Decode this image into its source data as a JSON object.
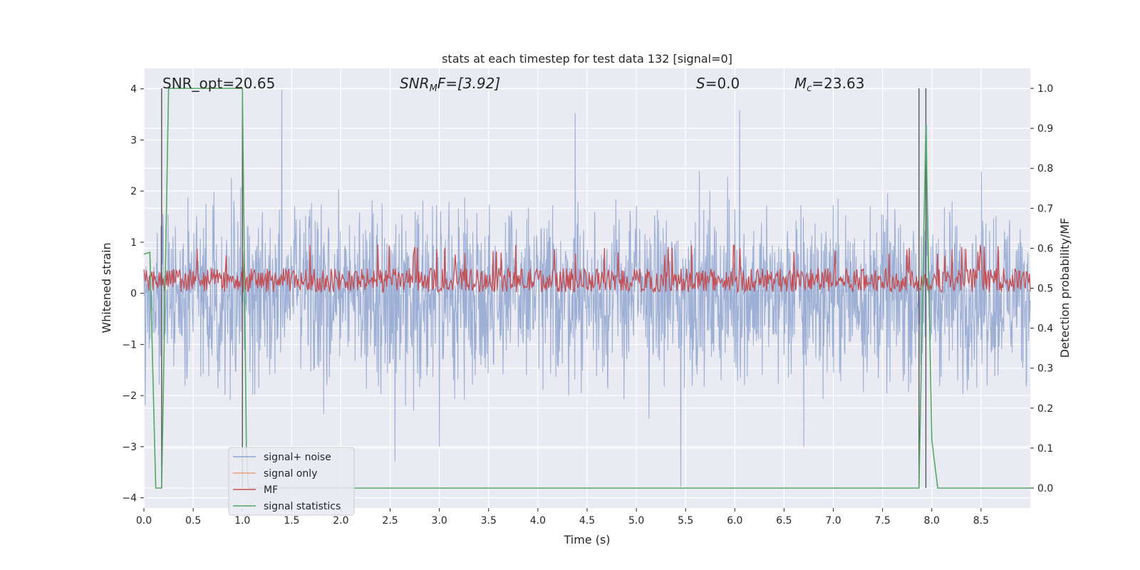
{
  "chart_data": {
    "type": "line",
    "title": "stats at each timestep for test data 132 [signal=0]",
    "xlabel": "Time (s)",
    "ylabel_left": "Whitened strain",
    "ylabel_right": "Detection probability/MF",
    "xlim": [
      0,
      9.0
    ],
    "ylim_left": [
      -4.2,
      4.4
    ],
    "ylim_right": [
      -0.05,
      1.05
    ],
    "grid": true,
    "legend_placement": "lower-left",
    "xticks": [
      "0.0",
      "0.5",
      "1.0",
      "1.5",
      "2.0",
      "2.5",
      "3.0",
      "3.5",
      "4.0",
      "4.5",
      "5.0",
      "5.5",
      "6.0",
      "6.5",
      "7.0",
      "7.5",
      "8.0",
      "8.5"
    ],
    "yticks_left": [
      "−4",
      "−3",
      "−2",
      "−1",
      "0",
      "1",
      "2",
      "3",
      "4"
    ],
    "yticks_right": [
      "0.0",
      "0.1",
      "0.2",
      "0.3",
      "0.4",
      "0.5",
      "0.6",
      "0.7",
      "0.8",
      "0.9",
      "1.0"
    ],
    "annotations": {
      "snr_opt": "SNR_opt=20.65",
      "snr_mf_base": "SNR",
      "snr_mf_sub": "M",
      "snr_mf_rest": "F=[3.92]",
      "s_var": "S",
      "s_rest": "=0.0",
      "mc_var": "M",
      "mc_sub": "c",
      "mc_rest": "=23.63"
    },
    "vertical_lines_x": [
      0.18,
      1.0,
      7.87,
      7.94
    ],
    "series": [
      {
        "name": "signal+ noise",
        "color": "#8fa4cf",
        "axis": "left",
        "noise_envelope": {
          "typical_amplitude": 1.5,
          "max_peak": 4.0,
          "min_trough": -3.8
        },
        "spikes": [
          [
            1.4,
            3.98
          ],
          [
            4.38,
            3.52
          ],
          [
            6.05,
            3.58
          ],
          [
            5.45,
            -3.78
          ],
          [
            2.55,
            -3.3
          ],
          [
            3.0,
            -3.0
          ],
          [
            6.7,
            -3.0
          ],
          [
            7.95,
            3.3
          ]
        ]
      },
      {
        "name": "signal only",
        "color": "#e8a17e",
        "axis": "left",
        "values": [
          0,
          0
        ]
      },
      {
        "name": "MF",
        "color": "#c44e52",
        "axis": "right",
        "level_range": [
          0.5,
          0.58
        ]
      },
      {
        "name": "signal statistics",
        "color": "#55a868",
        "axis": "right",
        "x": [
          0.0,
          0.06,
          0.12,
          0.18,
          0.25,
          1.0,
          1.04,
          1.06,
          7.87,
          7.94,
          8.0,
          8.06,
          9.0
        ],
        "y": [
          0.585,
          0.59,
          0.0,
          0.0,
          1.0,
          1.0,
          0.1,
          0.0,
          0.0,
          0.91,
          0.12,
          0.0,
          0.0
        ]
      }
    ]
  }
}
